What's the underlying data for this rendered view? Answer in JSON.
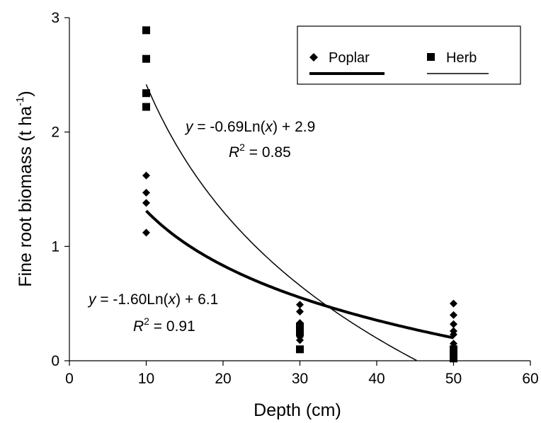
{
  "chart_data": {
    "type": "scatter",
    "title": "",
    "xlabel": "Depth (cm)",
    "ylabel_main": "Fine root biomass (t ha",
    "ylabel_sup": "-1",
    "ylabel_close": ")",
    "xlim": [
      0,
      60
    ],
    "ylim": [
      0,
      3
    ],
    "xticks": [
      "0",
      "10",
      "20",
      "30",
      "40",
      "50",
      "60"
    ],
    "yticks": [
      "0",
      "1",
      "2",
      "3"
    ],
    "grid": false,
    "legend_position": "top-right",
    "series": [
      {
        "name": "Poplar",
        "marker": "diamond",
        "points": [
          [
            10,
            1.62
          ],
          [
            10,
            1.47
          ],
          [
            10,
            1.38
          ],
          [
            10,
            1.12
          ],
          [
            30,
            0.49
          ],
          [
            30,
            0.43
          ],
          [
            30,
            0.33
          ],
          [
            30,
            0.3
          ],
          [
            30,
            0.27
          ],
          [
            30,
            0.24
          ],
          [
            30,
            0.21
          ],
          [
            30,
            0.18
          ],
          [
            50,
            0.5
          ],
          [
            50,
            0.4
          ],
          [
            50,
            0.32
          ],
          [
            50,
            0.26
          ],
          [
            50,
            0.23
          ],
          [
            50,
            0.15
          ],
          [
            50,
            0.1
          ],
          [
            50,
            0.06
          ],
          [
            50,
            0.03
          ]
        ],
        "trendline": {
          "a": -0.69,
          "b": 2.9,
          "xmax": 50,
          "weight": "thick"
        }
      },
      {
        "name": "Herb",
        "marker": "square",
        "points": [
          [
            10,
            2.89
          ],
          [
            10,
            2.64
          ],
          [
            10,
            2.34
          ],
          [
            10,
            2.22
          ],
          [
            30,
            0.3
          ],
          [
            30,
            0.25
          ],
          [
            30,
            0.1
          ],
          [
            50,
            0.1
          ],
          [
            50,
            0.07
          ],
          [
            50,
            0.04
          ],
          [
            50,
            0.02
          ]
        ],
        "trendline": {
          "a": -1.6,
          "b": 6.1,
          "xmax": 45.2,
          "weight": "thin"
        }
      }
    ],
    "annotations": [
      {
        "id": "herb-eq",
        "y": "y",
        "eq": " = -0.69Ln(",
        "x": "x",
        "eq_end": ") + 2.9",
        "r": "R",
        "r2": "2",
        "r_eq": " = 0.85"
      },
      {
        "id": "poplar-eq",
        "y": "y",
        "eq": " = -1.60Ln(",
        "x": "x",
        "eq_end": ") + 6.1",
        "r": "R",
        "r2": "2",
        "r_eq": " = 0.91"
      }
    ]
  }
}
